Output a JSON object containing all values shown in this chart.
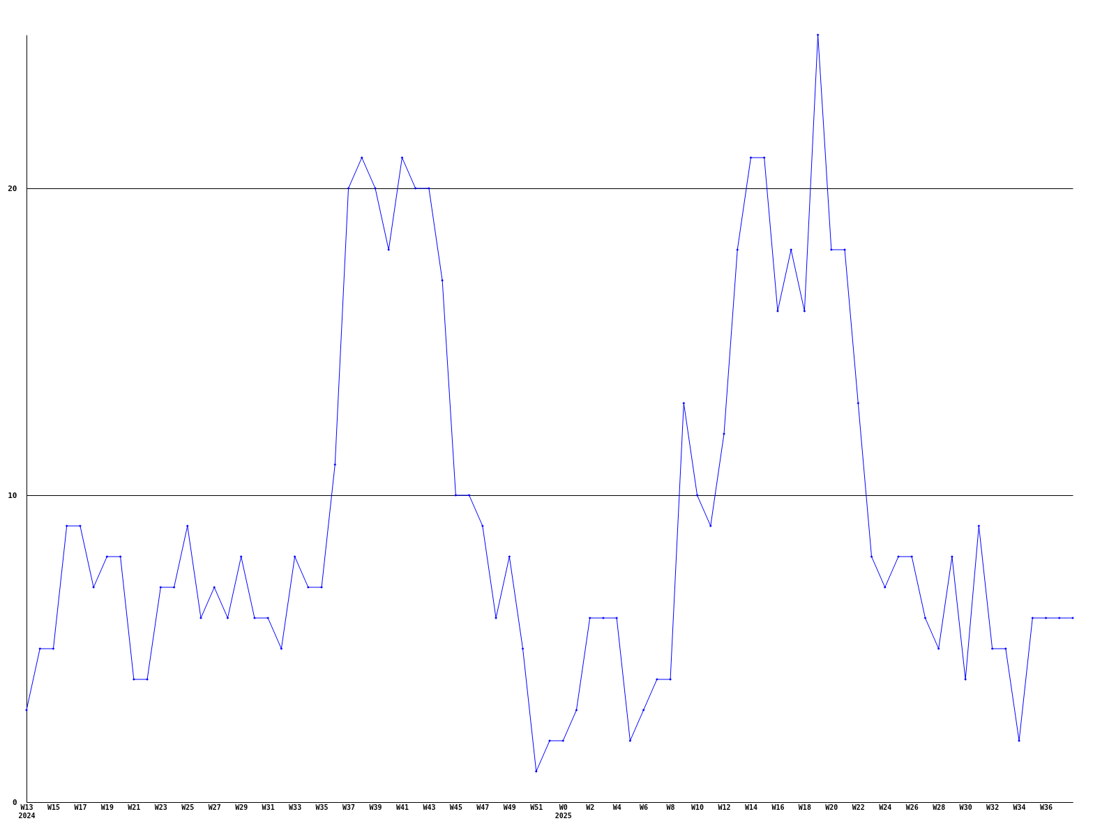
{
  "chart_data": {
    "type": "line",
    "categories": [
      "W13\n2024",
      null,
      "W15",
      null,
      "W17",
      null,
      "W19",
      null,
      "W21",
      null,
      "W23",
      null,
      "W25",
      null,
      "W27",
      null,
      "W29",
      null,
      "W31",
      null,
      "W33",
      null,
      "W35",
      null,
      "W37",
      null,
      "W39",
      null,
      "W41",
      null,
      "W43",
      null,
      "W45",
      null,
      "W47",
      null,
      "W49",
      null,
      "W51",
      null,
      "W0\n2025",
      null,
      "W2",
      null,
      "W4",
      null,
      "W6",
      null,
      "W8",
      null,
      "W10",
      null,
      "W12",
      null,
      "W14",
      null,
      "W16",
      null,
      "W18",
      null,
      "W20",
      null,
      "W22",
      null,
      "W24",
      null,
      "W26",
      null,
      "W28",
      null,
      "W30",
      null,
      "W32",
      null,
      "W34",
      null,
      "W36",
      null,
      null
    ],
    "series": [
      {
        "color": "#0000ff",
        "values": [
          3,
          5,
          5,
          9,
          9,
          7,
          8,
          8,
          4,
          4,
          7,
          7,
          9,
          6,
          7,
          6,
          8,
          6,
          6,
          5,
          8,
          7,
          7,
          11,
          20,
          21,
          20,
          18,
          21,
          20,
          20,
          17,
          10,
          10,
          9,
          6,
          8,
          5,
          1,
          2,
          2,
          3,
          6,
          6,
          6,
          2,
          3,
          4,
          4,
          13,
          10,
          9,
          12,
          18,
          21,
          21,
          16,
          18,
          16,
          25,
          18,
          18,
          13,
          8,
          7,
          8,
          8,
          6,
          5,
          8,
          4,
          9,
          5,
          5,
          2,
          6,
          6,
          6,
          6
        ]
      }
    ],
    "ylim": [
      0,
      25
    ],
    "yticks": [
      0,
      10,
      20
    ],
    "grid": "y",
    "marker": "diamond",
    "line_style": "solid"
  }
}
